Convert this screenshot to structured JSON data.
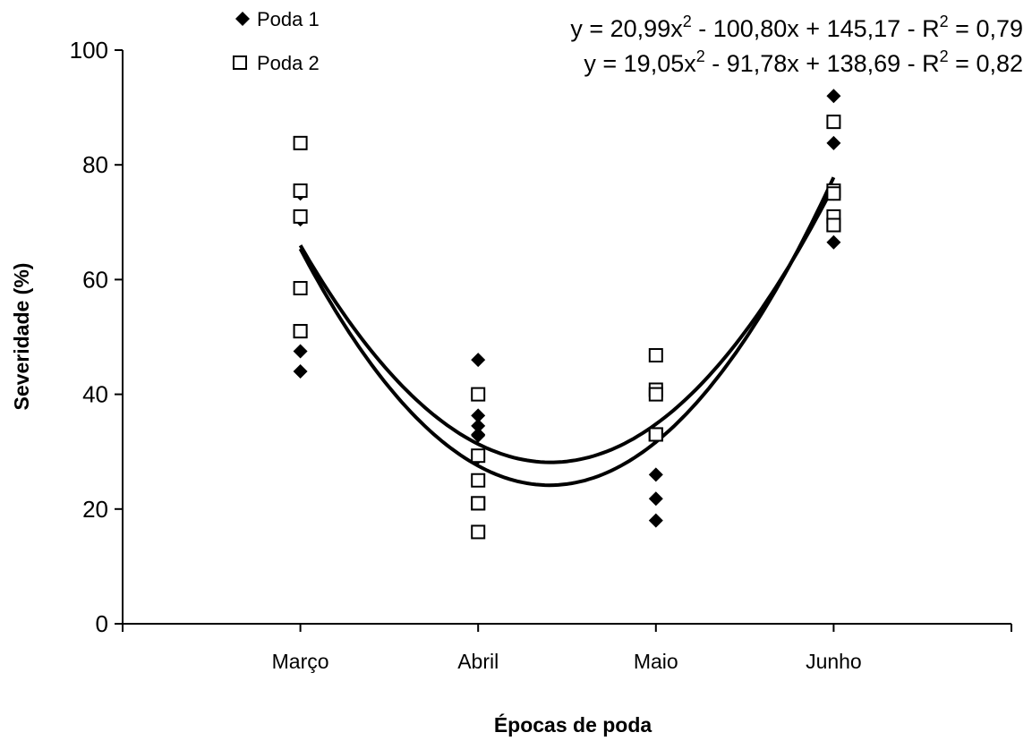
{
  "chart_data": {
    "type": "scatter",
    "xlabel": "Épocas de poda",
    "ylabel": "Severidade (%)",
    "categories": [
      "Março",
      "Abril",
      "Maio",
      "Junho"
    ],
    "x_range": [
      0,
      5
    ],
    "ylim": [
      0,
      100
    ],
    "yticks": [
      0,
      20,
      40,
      60,
      80,
      100
    ],
    "grid": false,
    "legend_position": "top-left",
    "series": [
      {
        "name": "Poda 1",
        "marker": "diamond-filled",
        "x": [
          1,
          1,
          1,
          1,
          1,
          1,
          2,
          2,
          2,
          2,
          2,
          2,
          3,
          3,
          3,
          3,
          3,
          3,
          4,
          4,
          4,
          4,
          4,
          4
        ],
        "y": [
          75.5,
          75,
          71,
          70.5,
          47.5,
          44,
          46,
          36.3,
          34.5,
          33,
          32.8,
          29,
          40.5,
          40,
          32.5,
          26,
          21.8,
          18,
          92,
          87.5,
          83.8,
          75.5,
          75,
          66.5
        ],
        "trend": {
          "a": 20.99,
          "b": -100.8,
          "c": 145.17,
          "r2": 0.79,
          "equation": "y = 20,99x² - 100,80x + 145,17 - R² = 0,79"
        }
      },
      {
        "name": "Poda 2",
        "marker": "square-open",
        "x": [
          1,
          1,
          1,
          1,
          1,
          1,
          2,
          2,
          2,
          2,
          2,
          2,
          3,
          3,
          3,
          3,
          3,
          3,
          4,
          4,
          4,
          4,
          4,
          4
        ],
        "y": [
          83.8,
          75.5,
          71,
          58.5,
          51,
          51,
          40,
          29.3,
          25,
          21,
          21,
          16,
          46.8,
          40.8,
          40,
          33,
          33,
          33,
          87.5,
          75.5,
          75,
          71,
          69.5,
          69.5
        ],
        "trend": {
          "a": 19.05,
          "b": -91.78,
          "c": 138.69,
          "r2": 0.82,
          "equation": "y = 19,05x² - 91,78x + 138,69 - R² = 0,82"
        }
      }
    ],
    "annotations": [
      {
        "id": "eq1",
        "prefix": "y = 20,99x",
        "sup1": "2",
        "middle": " - 100,80x + 145,17 - R",
        "sup2": "2",
        "suffix": " = 0,79"
      },
      {
        "id": "eq2",
        "prefix": "y = 19,05x",
        "sup1": "2",
        "middle": " - 91,78x + 138,69 - R",
        "sup2": "2",
        "suffix": " = 0,82"
      }
    ]
  }
}
